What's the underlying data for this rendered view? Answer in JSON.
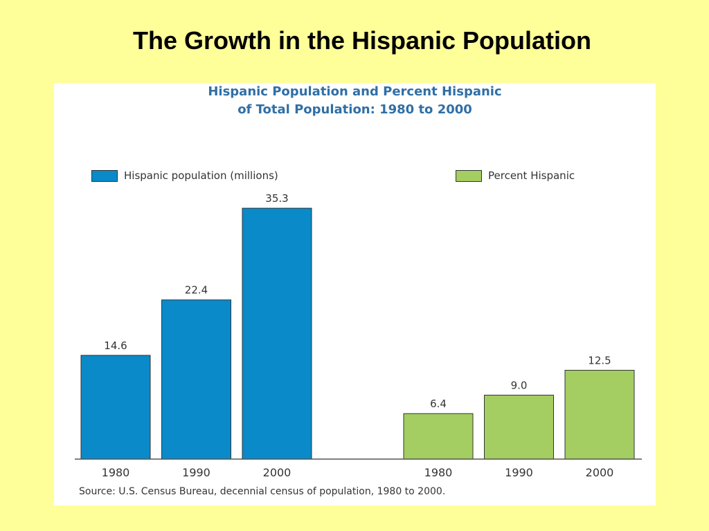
{
  "slide": {
    "title": "The Growth in the Hispanic Population"
  },
  "chart_data": {
    "type": "bar",
    "title_line1": "Hispanic Population and Percent Hispanic",
    "title_line2": "of Total Population:  1980 to 2000",
    "source": "Source:  U.S. Census Bureau, decennial census of population, 1980 to 2000.",
    "legend_placement": "top",
    "grid": false,
    "series": [
      {
        "name": "Hispanic population (millions)",
        "color": "#0a8ac8",
        "categories": [
          "1980",
          "1990",
          "2000"
        ],
        "values": [
          14.6,
          22.4,
          35.3
        ],
        "labels": [
          "14.6",
          "22.4",
          "35.3"
        ]
      },
      {
        "name": "Percent Hispanic",
        "color": "#a4cd62",
        "categories": [
          "1980",
          "1990",
          "2000"
        ],
        "values": [
          6.4,
          9.0,
          12.5
        ],
        "labels": [
          "6.4",
          "9.0",
          "12.5"
        ]
      }
    ]
  }
}
